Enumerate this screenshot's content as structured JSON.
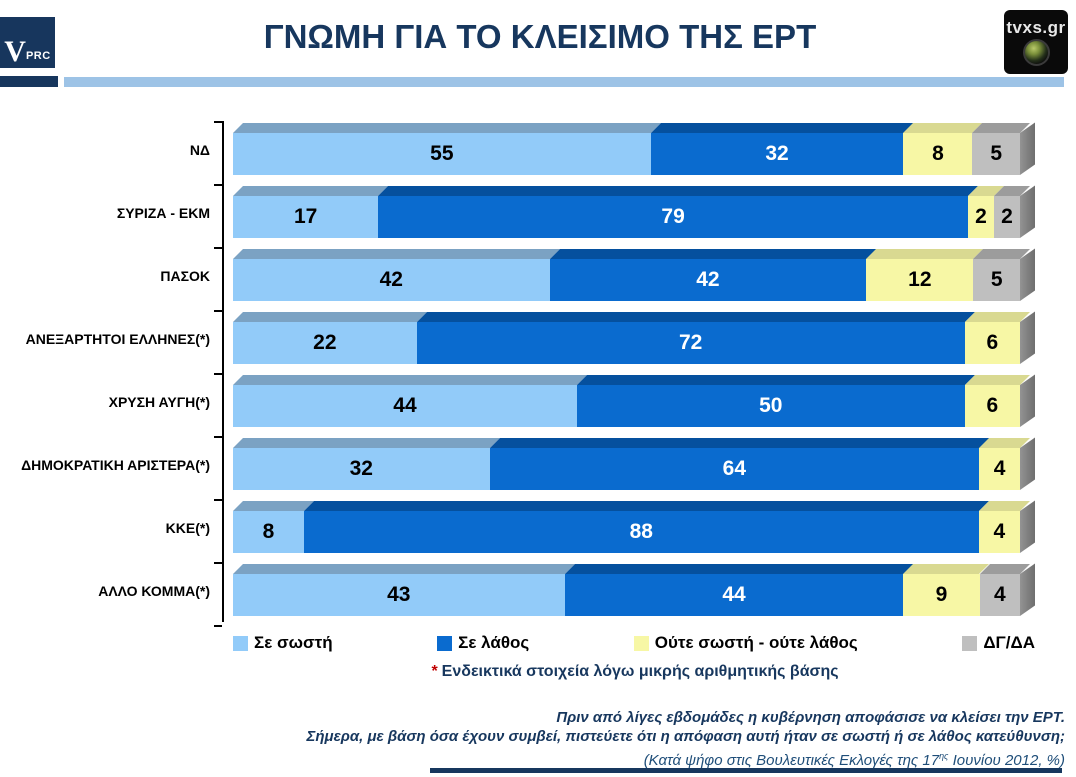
{
  "header": {
    "title": "ΓΝΩΜΗ ΓΙΑ ΤΟ ΚΛΕΙΣΙΜΟ ΤΗΣ ΕΡΤ",
    "vprc_logo": {
      "v": "V",
      "prc": "PRC"
    },
    "tvxs_logo": {
      "text": "tvxs.gr"
    }
  },
  "chart_data": {
    "type": "bar",
    "orientation": "horizontal",
    "stacked": true,
    "unit": "%",
    "xlim": [
      0,
      100
    ],
    "grid": false,
    "legend_position": "bottom",
    "categories": [
      "ΝΔ",
      "ΣΥΡΙΖΑ - ΕΚΜ",
      "ΠΑΣΟΚ",
      "ΑΝΕΞΑΡΤΗΤΟΙ ΕΛΛΗΝΕΣ(*)",
      "ΧΡΥΣΗ ΑΥΓΗ(*)",
      "ΔΗΜΟΚΡΑΤΙΚΗ ΑΡΙΣΤΕΡΑ(*)",
      "ΚΚΕ(*)",
      "ΑΛΛΟ ΚΟΜΜΑ(*)"
    ],
    "series": [
      {
        "name": "Σε σωστή",
        "color": "#92CBF9",
        "top_color": "#7BA2C3",
        "label_color": "#000000",
        "values": [
          55,
          17,
          42,
          22,
          44,
          32,
          8,
          43
        ]
      },
      {
        "name": "Σε λάθος",
        "color": "#0A6BCF",
        "top_color": "#05509E",
        "label_color": "#FFFFFF",
        "values": [
          32,
          79,
          42,
          72,
          50,
          64,
          88,
          44
        ]
      },
      {
        "name": "Ούτε σωστή - ούτε λάθος",
        "color": "#F7F7A5",
        "top_color": "#D9D991",
        "label_color": "#000000",
        "values": [
          8,
          2,
          12,
          6,
          6,
          4,
          4,
          9
        ]
      },
      {
        "name": "ΔΓ/ΔΑ",
        "color": "#BFBFBF",
        "top_color": "#9C9C9C",
        "label_color": "#000000",
        "values": [
          5,
          2,
          5,
          0,
          0,
          0,
          0,
          4
        ]
      }
    ]
  },
  "footnote": {
    "star": "*",
    "text": "Ενδεικτικά στοιχεία λόγω μικρής αριθμητικής βάσης"
  },
  "question": {
    "line1": "Πριν από λίγες εβδομάδες η κυβέρνηση αποφάσισε να κλείσει την ΕΡΤ.",
    "line2": "Σήμερα, με βάση όσα έχουν συμβεί, πιστεύετε ότι η απόφαση αυτή ήταν σε σωστή ή σε λάθος κατεύθυνση;",
    "line3_pre": "(Κατά ψήφο στις Βουλευτικές Εκλογές της 17",
    "line3_sup": "ης",
    "line3_post": " Ιουνίου 2012, %)"
  },
  "colors": {
    "navy": "#17375E",
    "band_blue": "#9DC3E6",
    "asterisk_red": "#C00000"
  }
}
